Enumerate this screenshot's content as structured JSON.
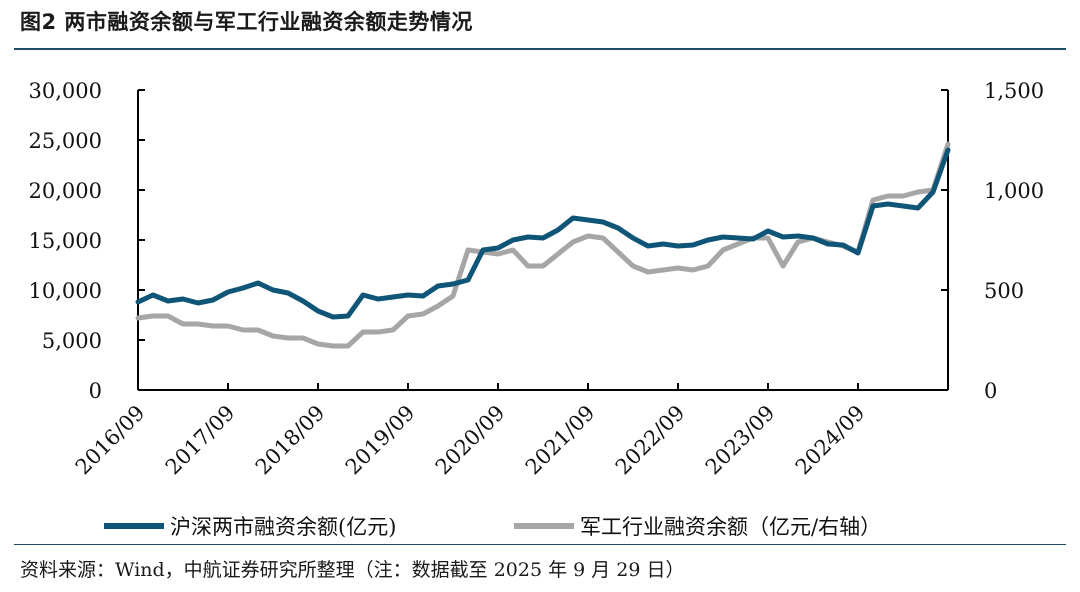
{
  "figure": {
    "title": "图2  两市融资余额与军工行业融资余额走势情况",
    "source": "资料来源：Wind，中航证券研究所整理（注：数据截至 2025 年 9 月 29 日）"
  },
  "chart_data": {
    "type": "line",
    "title": "图2  两市融资余额与军工行业融资余额走势情况",
    "xlabel": "",
    "ylabel": "",
    "x_ticks": [
      "2016/09",
      "2017/09",
      "2018/09",
      "2019/09",
      "2020/09",
      "2021/09",
      "2022/09",
      "2023/09",
      "2024/09"
    ],
    "y_left_ticks": [
      "0",
      "5,000",
      "10,000",
      "15,000",
      "20,000",
      "25,000",
      "30,000"
    ],
    "y_right_ticks": [
      "0",
      "500",
      "1,000",
      "1,500"
    ],
    "ylim_left": [
      0,
      30000
    ],
    "ylim_right": [
      0,
      1500
    ],
    "xlim": [
      "2016-09",
      "2025-09"
    ],
    "grid": false,
    "legend_position": "bottom",
    "colors": {
      "series1": "#0f5577",
      "series2": "#a6a6a6"
    },
    "series": [
      {
        "name": "沪深两市融资余额(亿元)",
        "axis": "left",
        "x": [
          "2016-09",
          "2016-11",
          "2017-01",
          "2017-03",
          "2017-05",
          "2017-07",
          "2017-09",
          "2017-11",
          "2018-01",
          "2018-03",
          "2018-05",
          "2018-07",
          "2018-09",
          "2018-11",
          "2019-01",
          "2019-03",
          "2019-05",
          "2019-07",
          "2019-09",
          "2019-11",
          "2020-01",
          "2020-03",
          "2020-05",
          "2020-07",
          "2020-09",
          "2020-11",
          "2021-01",
          "2021-03",
          "2021-05",
          "2021-07",
          "2021-09",
          "2021-11",
          "2022-01",
          "2022-03",
          "2022-05",
          "2022-07",
          "2022-09",
          "2022-11",
          "2023-01",
          "2023-03",
          "2023-05",
          "2023-07",
          "2023-09",
          "2023-11",
          "2024-01",
          "2024-03",
          "2024-05",
          "2024-07",
          "2024-09",
          "2024-11",
          "2025-01",
          "2025-03",
          "2025-05",
          "2025-07",
          "2025-09"
        ],
        "values": [
          8800,
          9500,
          8900,
          9100,
          8700,
          9000,
          9800,
          10200,
          10700,
          10000,
          9700,
          8900,
          7900,
          7300,
          7400,
          9500,
          9100,
          9300,
          9500,
          9400,
          10400,
          10600,
          11000,
          14000,
          14200,
          15000,
          15300,
          15200,
          16000,
          17200,
          17000,
          16800,
          16200,
          15200,
          14400,
          14600,
          14400,
          14500,
          15000,
          15300,
          15200,
          15100,
          15900,
          15300,
          15400,
          15200,
          14600,
          14500,
          13700,
          18400,
          18600,
          18400,
          18200,
          19800,
          24000
        ]
      },
      {
        "name": "军工行业融资余额（亿元/右轴）",
        "axis": "right",
        "x": [
          "2016-09",
          "2016-11",
          "2017-01",
          "2017-03",
          "2017-05",
          "2017-07",
          "2017-09",
          "2017-11",
          "2018-01",
          "2018-03",
          "2018-05",
          "2018-07",
          "2018-09",
          "2018-11",
          "2019-01",
          "2019-03",
          "2019-05",
          "2019-07",
          "2019-09",
          "2019-11",
          "2020-01",
          "2020-03",
          "2020-05",
          "2020-07",
          "2020-09",
          "2020-11",
          "2021-01",
          "2021-03",
          "2021-05",
          "2021-07",
          "2021-09",
          "2021-11",
          "2022-01",
          "2022-03",
          "2022-05",
          "2022-07",
          "2022-09",
          "2022-11",
          "2023-01",
          "2023-03",
          "2023-05",
          "2023-07",
          "2023-09",
          "2023-11",
          "2024-01",
          "2024-03",
          "2024-05",
          "2024-07",
          "2024-09",
          "2024-11",
          "2025-01",
          "2025-03",
          "2025-05",
          "2025-07",
          "2025-09"
        ],
        "values": [
          360,
          370,
          370,
          330,
          330,
          320,
          320,
          300,
          300,
          270,
          260,
          260,
          230,
          220,
          220,
          290,
          290,
          300,
          370,
          380,
          420,
          470,
          700,
          690,
          680,
          700,
          620,
          620,
          680,
          740,
          770,
          760,
          690,
          620,
          590,
          600,
          610,
          600,
          620,
          700,
          730,
          760,
          760,
          620,
          740,
          760,
          740,
          720,
          690,
          950,
          970,
          970,
          990,
          1000,
          1230
        ]
      }
    ]
  }
}
